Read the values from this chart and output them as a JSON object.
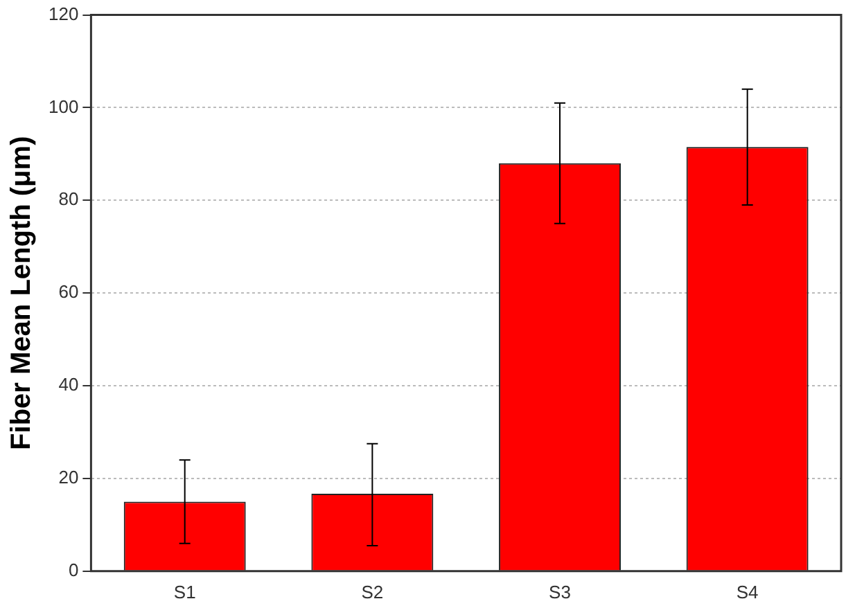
{
  "chart_data": {
    "type": "bar",
    "ylabel": "Fiber Mean Length (μm)",
    "categories": [
      "S1",
      "S2",
      "S3",
      "S4"
    ],
    "values": [
      15,
      16.7,
      88,
      91.5
    ],
    "errors": [
      [
        6,
        24
      ],
      [
        5.5,
        27.5
      ],
      [
        75,
        101
      ],
      [
        79,
        104
      ]
    ],
    "color": "#ff0000",
    "ylim": [
      0,
      120
    ],
    "yticks": [
      0,
      20,
      40,
      60,
      80,
      100,
      120
    ],
    "grid": "y"
  }
}
